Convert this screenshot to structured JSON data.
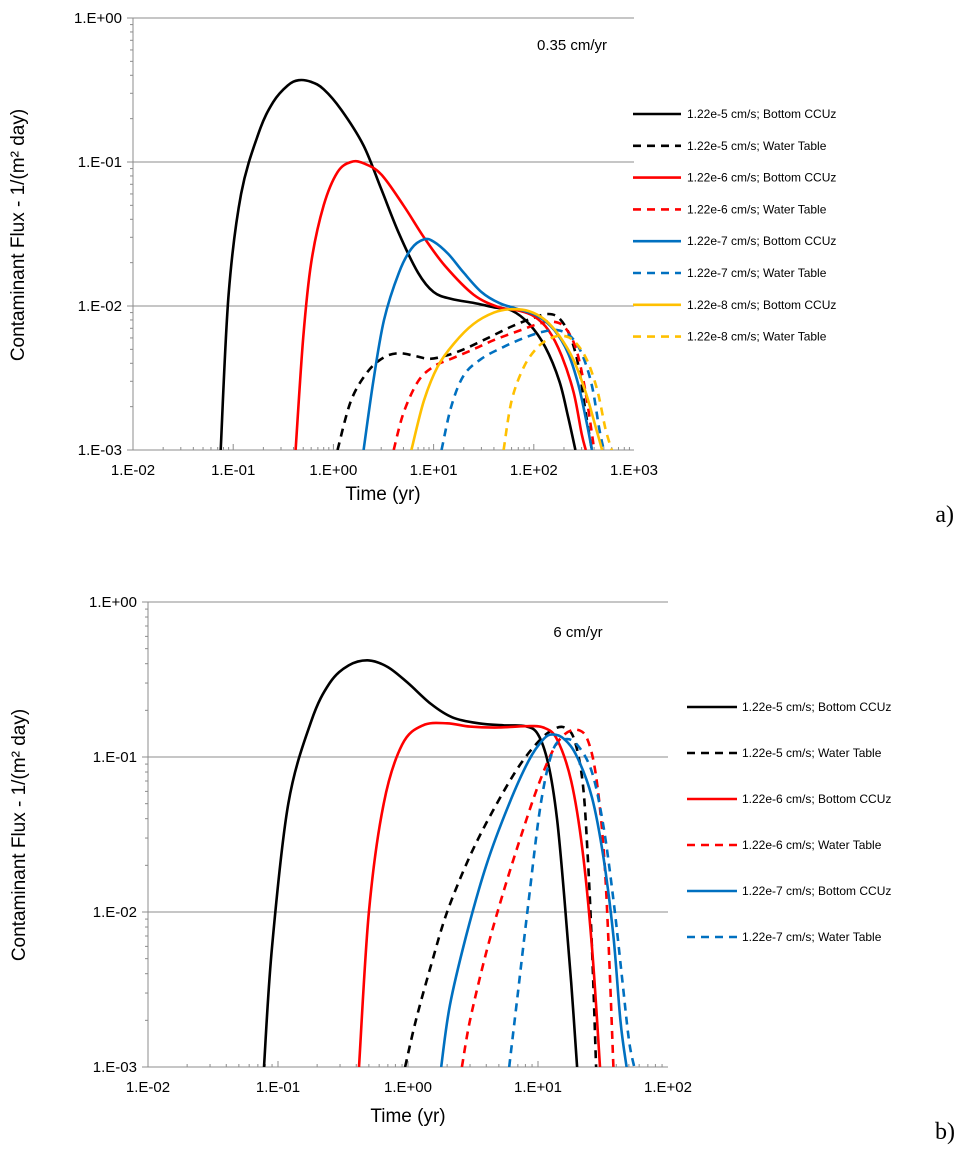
{
  "chart_data": [
    {
      "type": "line",
      "panel_label": "a)",
      "annotation": "0.35 cm/yr",
      "xlabel": "Time (yr)",
      "ylabel": "Contaminant Flux - 1/(m² day)",
      "xscale": "log",
      "yscale": "log",
      "xlim": [
        0.01,
        1000
      ],
      "ylim": [
        0.001,
        1
      ],
      "x_ticks": [
        "1.E-02",
        "1.E-01",
        "1.E+00",
        "1.E+01",
        "1.E+02",
        "1.E+03"
      ],
      "y_ticks": [
        "1.E-03",
        "1.E-02",
        "1.E-01",
        "1.E+00"
      ],
      "grid": "horizontal major",
      "legend_position": "right",
      "series": [
        {
          "name": "1.22e-5 cm/s; Bottom CCUz",
          "color": "#000000",
          "dash": "solid",
          "points": [
            [
              0.075,
              0.001
            ],
            [
              0.09,
              0.012
            ],
            [
              0.12,
              0.06
            ],
            [
              0.18,
              0.16
            ],
            [
              0.25,
              0.26
            ],
            [
              0.35,
              0.34
            ],
            [
              0.45,
              0.37
            ],
            [
              0.6,
              0.36
            ],
            [
              0.8,
              0.32
            ],
            [
              1.2,
              0.23
            ],
            [
              2,
              0.13
            ],
            [
              3,
              0.065
            ],
            [
              4.5,
              0.032
            ],
            [
              7,
              0.017
            ],
            [
              10,
              0.0125
            ],
            [
              15,
              0.0112
            ],
            [
              25,
              0.0105
            ],
            [
              40,
              0.0098
            ],
            [
              60,
              0.0093
            ],
            [
              90,
              0.0075
            ],
            [
              130,
              0.0052
            ],
            [
              180,
              0.003
            ],
            [
              220,
              0.0017
            ],
            [
              260,
              0.001
            ]
          ]
        },
        {
          "name": "1.22e-5 cm/s; Water Table",
          "color": "#000000",
          "dash": "dashed",
          "points": [
            [
              1.1,
              0.001
            ],
            [
              1.5,
              0.0022
            ],
            [
              2.2,
              0.0035
            ],
            [
              3.2,
              0.0044
            ],
            [
              4.5,
              0.0047
            ],
            [
              6.5,
              0.0045
            ],
            [
              9,
              0.0043
            ],
            [
              13,
              0.0045
            ],
            [
              20,
              0.005
            ],
            [
              35,
              0.006
            ],
            [
              60,
              0.0072
            ],
            [
              100,
              0.0083
            ],
            [
              140,
              0.0088
            ],
            [
              180,
              0.0082
            ],
            [
              230,
              0.0062
            ],
            [
              280,
              0.0038
            ],
            [
              330,
              0.0018
            ],
            [
              380,
              0.001
            ]
          ]
        },
        {
          "name": "1.22e-6 cm/s; Bottom CCUz",
          "color": "#ff0000",
          "dash": "solid",
          "points": [
            [
              0.42,
              0.001
            ],
            [
              0.5,
              0.006
            ],
            [
              0.6,
              0.02
            ],
            [
              0.8,
              0.05
            ],
            [
              1.1,
              0.085
            ],
            [
              1.5,
              0.1
            ],
            [
              2,
              0.098
            ],
            [
              3,
              0.082
            ],
            [
              5,
              0.05
            ],
            [
              8,
              0.03
            ],
            [
              13,
              0.019
            ],
            [
              25,
              0.012
            ],
            [
              45,
              0.0098
            ],
            [
              70,
              0.0093
            ],
            [
              100,
              0.0085
            ],
            [
              140,
              0.0068
            ],
            [
              190,
              0.0045
            ],
            [
              250,
              0.0025
            ],
            [
              300,
              0.0013
            ],
            [
              330,
              0.001
            ]
          ]
        },
        {
          "name": "1.22e-6 cm/s; Water Table",
          "color": "#ff0000",
          "dash": "dashed",
          "points": [
            [
              4,
              0.001
            ],
            [
              5,
              0.0018
            ],
            [
              7,
              0.003
            ],
            [
              10,
              0.0038
            ],
            [
              15,
              0.0043
            ],
            [
              25,
              0.005
            ],
            [
              40,
              0.0058
            ],
            [
              70,
              0.0067
            ],
            [
              110,
              0.0075
            ],
            [
              150,
              0.0078
            ],
            [
              200,
              0.0072
            ],
            [
              260,
              0.0052
            ],
            [
              320,
              0.0028
            ],
            [
              380,
              0.0013
            ],
            [
              400,
              0.001
            ]
          ]
        },
        {
          "name": "1.22e-7 cm/s; Bottom CCUz",
          "color": "#0070c0",
          "dash": "solid",
          "points": [
            [
              2,
              0.001
            ],
            [
              2.5,
              0.003
            ],
            [
              3.2,
              0.008
            ],
            [
              4.5,
              0.017
            ],
            [
              6,
              0.025
            ],
            [
              8,
              0.029
            ],
            [
              10,
              0.028
            ],
            [
              14,
              0.023
            ],
            [
              20,
              0.017
            ],
            [
              30,
              0.0125
            ],
            [
              45,
              0.0105
            ],
            [
              70,
              0.0095
            ],
            [
              110,
              0.0085
            ],
            [
              160,
              0.0068
            ],
            [
              220,
              0.0047
            ],
            [
              280,
              0.0028
            ],
            [
              340,
              0.0015
            ],
            [
              380,
              0.001
            ]
          ]
        },
        {
          "name": "1.22e-7 cm/s; Water Table",
          "color": "#0070c0",
          "dash": "dashed",
          "points": [
            [
              12,
              0.001
            ],
            [
              15,
              0.002
            ],
            [
              20,
              0.0033
            ],
            [
              30,
              0.0043
            ],
            [
              50,
              0.0052
            ],
            [
              80,
              0.006
            ],
            [
              120,
              0.0066
            ],
            [
              170,
              0.0068
            ],
            [
              230,
              0.0062
            ],
            [
              300,
              0.0047
            ],
            [
              380,
              0.0028
            ],
            [
              450,
              0.0014
            ],
            [
              500,
              0.001
            ]
          ]
        },
        {
          "name": "1.22e-8 cm/s; Bottom CCUz",
          "color": "#ffc000",
          "dash": "solid",
          "points": [
            [
              6,
              0.001
            ],
            [
              8,
              0.0022
            ],
            [
              11,
              0.0038
            ],
            [
              16,
              0.0055
            ],
            [
              25,
              0.0075
            ],
            [
              40,
              0.009
            ],
            [
              60,
              0.0095
            ],
            [
              90,
              0.0092
            ],
            [
              130,
              0.008
            ],
            [
              180,
              0.0062
            ],
            [
              250,
              0.0042
            ],
            [
              330,
              0.0025
            ],
            [
              420,
              0.0014
            ],
            [
              480,
              0.001
            ]
          ]
        },
        {
          "name": "1.22e-8 cm/s; Water Table",
          "color": "#ffc000",
          "dash": "dashed",
          "points": [
            [
              50,
              0.001
            ],
            [
              60,
              0.0022
            ],
            [
              80,
              0.0038
            ],
            [
              110,
              0.0052
            ],
            [
              150,
              0.006
            ],
            [
              200,
              0.0062
            ],
            [
              260,
              0.0056
            ],
            [
              340,
              0.0042
            ],
            [
              430,
              0.0026
            ],
            [
              520,
              0.0014
            ],
            [
              600,
              0.001
            ]
          ]
        }
      ]
    },
    {
      "type": "line",
      "panel_label": "b)",
      "annotation": "6 cm/yr",
      "xlabel": "Time (yr)",
      "ylabel": "Contaminant Flux - 1/(m² day)",
      "xscale": "log",
      "yscale": "log",
      "xlim": [
        0.01,
        100
      ],
      "ylim": [
        0.001,
        1
      ],
      "x_ticks": [
        "1.E-02",
        "1.E-01",
        "1.E+00",
        "1.E+01",
        "1.E+02"
      ],
      "y_ticks": [
        "1.E-03",
        "1.E-02",
        "1.E-01",
        "1.E+00"
      ],
      "grid": "horizontal major",
      "legend_position": "right",
      "series": [
        {
          "name": "1.22e-5 cm/s; Bottom CCUz",
          "color": "#000000",
          "dash": "solid",
          "points": [
            [
              0.078,
              0.001
            ],
            [
              0.09,
              0.006
            ],
            [
              0.12,
              0.05
            ],
            [
              0.18,
              0.17
            ],
            [
              0.25,
              0.3
            ],
            [
              0.35,
              0.39
            ],
            [
              0.5,
              0.42
            ],
            [
              0.7,
              0.38
            ],
            [
              1,
              0.3
            ],
            [
              1.5,
              0.22
            ],
            [
              2.2,
              0.18
            ],
            [
              3.5,
              0.165
            ],
            [
              5.5,
              0.16
            ],
            [
              8,
              0.158
            ],
            [
              10,
              0.14
            ],
            [
              12,
              0.09
            ],
            [
              14,
              0.04
            ],
            [
              16,
              0.012
            ],
            [
              18,
              0.0035
            ],
            [
              20,
              0.001
            ]
          ]
        },
        {
          "name": "1.22e-5 cm/s; Water Table",
          "color": "#000000",
          "dash": "dashed",
          "points": [
            [
              0.95,
              0.001
            ],
            [
              1.15,
              0.002
            ],
            [
              1.5,
              0.0045
            ],
            [
              2,
              0.01
            ],
            [
              3,
              0.023
            ],
            [
              4.5,
              0.045
            ],
            [
              7,
              0.085
            ],
            [
              10,
              0.125
            ],
            [
              13,
              0.15
            ],
            [
              16,
              0.155
            ],
            [
              19,
              0.13
            ],
            [
              22,
              0.07
            ],
            [
              24,
              0.025
            ],
            [
              26,
              0.006
            ],
            [
              28,
              0.001
            ]
          ]
        },
        {
          "name": "1.22e-6 cm/s; Bottom CCUz",
          "color": "#ff0000",
          "dash": "solid",
          "points": [
            [
              0.42,
              0.001
            ],
            [
              0.5,
              0.01
            ],
            [
              0.65,
              0.05
            ],
            [
              0.9,
              0.12
            ],
            [
              1.3,
              0.16
            ],
            [
              2,
              0.165
            ],
            [
              3,
              0.157
            ],
            [
              5,
              0.155
            ],
            [
              8,
              0.158
            ],
            [
              11,
              0.155
            ],
            [
              14,
              0.13
            ],
            [
              18,
              0.07
            ],
            [
              22,
              0.025
            ],
            [
              26,
              0.006
            ],
            [
              30,
              0.001
            ]
          ]
        },
        {
          "name": "1.22e-6 cm/s; Water Table",
          "color": "#ff0000",
          "dash": "dashed",
          "points": [
            [
              2.6,
              0.001
            ],
            [
              3,
              0.002
            ],
            [
              4,
              0.0055
            ],
            [
              5.5,
              0.014
            ],
            [
              7.5,
              0.032
            ],
            [
              10,
              0.065
            ],
            [
              13,
              0.11
            ],
            [
              16,
              0.14
            ],
            [
              20,
              0.15
            ],
            [
              24,
              0.13
            ],
            [
              28,
              0.075
            ],
            [
              32,
              0.025
            ],
            [
              35,
              0.006
            ],
            [
              38,
              0.001
            ]
          ]
        },
        {
          "name": "1.22e-7 cm/s; Bottom CCUz",
          "color": "#0070c0",
          "dash": "solid",
          "points": [
            [
              1.8,
              0.001
            ],
            [
              2.1,
              0.0025
            ],
            [
              2.8,
              0.007
            ],
            [
              4,
              0.02
            ],
            [
              6,
              0.05
            ],
            [
              8.5,
              0.095
            ],
            [
              11,
              0.13
            ],
            [
              13,
              0.14
            ],
            [
              16,
              0.13
            ],
            [
              20,
              0.1
            ],
            [
              26,
              0.055
            ],
            [
              32,
              0.022
            ],
            [
              38,
              0.007
            ],
            [
              43,
              0.002
            ],
            [
              48,
              0.001
            ]
          ]
        },
        {
          "name": "1.22e-7 cm/s; Water Table",
          "color": "#0070c0",
          "dash": "dashed",
          "points": [
            [
              6,
              0.001
            ],
            [
              7,
              0.003
            ],
            [
              8.5,
              0.012
            ],
            [
              10.5,
              0.05
            ],
            [
              13,
              0.11
            ],
            [
              16,
              0.13
            ],
            [
              20,
              0.12
            ],
            [
              26,
              0.08
            ],
            [
              32,
              0.035
            ],
            [
              38,
              0.012
            ],
            [
              44,
              0.004
            ],
            [
              50,
              0.0015
            ],
            [
              55,
              0.001
            ]
          ]
        }
      ]
    }
  ]
}
